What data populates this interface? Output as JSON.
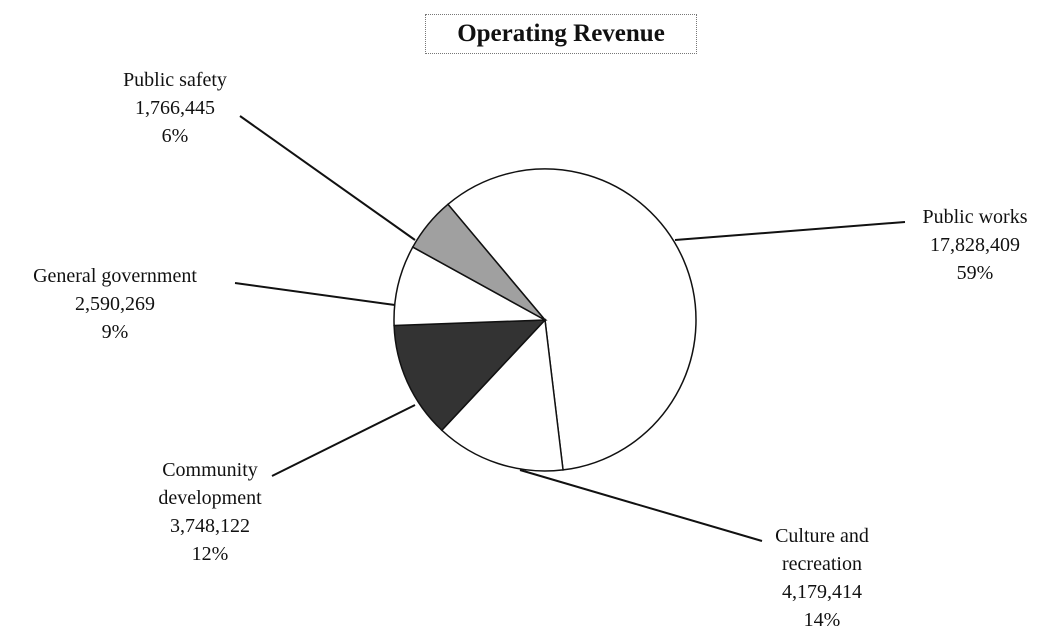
{
  "chart_data": {
    "type": "pie",
    "title": "Operating Revenue",
    "categories": [
      "Public works",
      "Culture and recreation",
      "Community development",
      "General government",
      "Public safety"
    ],
    "values": [
      17828409,
      4179414,
      3748122,
      2590269,
      1766445
    ],
    "value_labels": [
      "17,828,409",
      "4,179,414",
      "3,748,122",
      "2,590,269",
      "1,766,445"
    ],
    "percentages": [
      59,
      14,
      12,
      9,
      6
    ],
    "percentage_labels": [
      "59%",
      "14%",
      "12%",
      "9%",
      "6%"
    ],
    "colors": [
      "#ffffff",
      "#ffffff",
      "#333333",
      "#ffffff",
      "#a0a0a0"
    ]
  }
}
